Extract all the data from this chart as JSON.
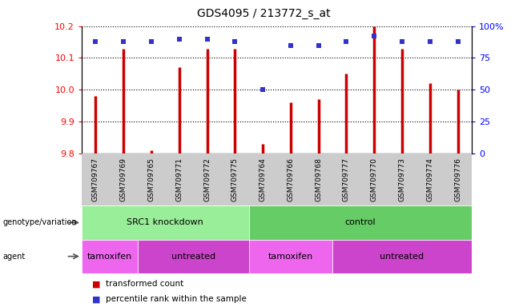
{
  "title": "GDS4095 / 213772_s_at",
  "samples": [
    "GSM709767",
    "GSM709769",
    "GSM709765",
    "GSM709771",
    "GSM709772",
    "GSM709775",
    "GSM709764",
    "GSM709766",
    "GSM709768",
    "GSM709777",
    "GSM709770",
    "GSM709773",
    "GSM709774",
    "GSM709776"
  ],
  "transformed_count": [
    9.98,
    10.13,
    9.81,
    10.07,
    10.13,
    10.13,
    9.83,
    9.96,
    9.97,
    10.05,
    10.2,
    10.13,
    10.02,
    10.0
  ],
  "percentile_rank": [
    88,
    88,
    88,
    90,
    90,
    88,
    50,
    85,
    85,
    88,
    92,
    88,
    88,
    88
  ],
  "ylim_left": [
    9.8,
    10.2
  ],
  "ylim_right": [
    0,
    100
  ],
  "yticks_left": [
    9.8,
    9.9,
    10.0,
    10.1,
    10.2
  ],
  "yticks_right": [
    0,
    25,
    50,
    75,
    100
  ],
  "bar_color": "#cc0000",
  "dot_color": "#3333cc",
  "bar_width": 0.07,
  "dot_size": 20,
  "genotype_groups": [
    {
      "label": "SRC1 knockdown",
      "start": 0,
      "end": 6,
      "color": "#99ee99"
    },
    {
      "label": "control",
      "start": 6,
      "end": 14,
      "color": "#66cc66"
    }
  ],
  "agent_groups": [
    {
      "label": "tamoxifen",
      "start": 0,
      "end": 2,
      "color": "#ee66ee"
    },
    {
      "label": "untreated",
      "start": 2,
      "end": 6,
      "color": "#cc44cc"
    },
    {
      "label": "tamoxifen",
      "start": 6,
      "end": 9,
      "color": "#ee66ee"
    },
    {
      "label": "untreated",
      "start": 9,
      "end": 14,
      "color": "#cc44cc"
    }
  ],
  "legend_items": [
    {
      "color": "#cc0000",
      "label": "transformed count"
    },
    {
      "color": "#3333cc",
      "label": "percentile rank within the sample"
    }
  ],
  "sample_bg_color": "#cccccc",
  "grid_color": "black",
  "grid_linestyle": ":",
  "grid_linewidth": 0.8
}
